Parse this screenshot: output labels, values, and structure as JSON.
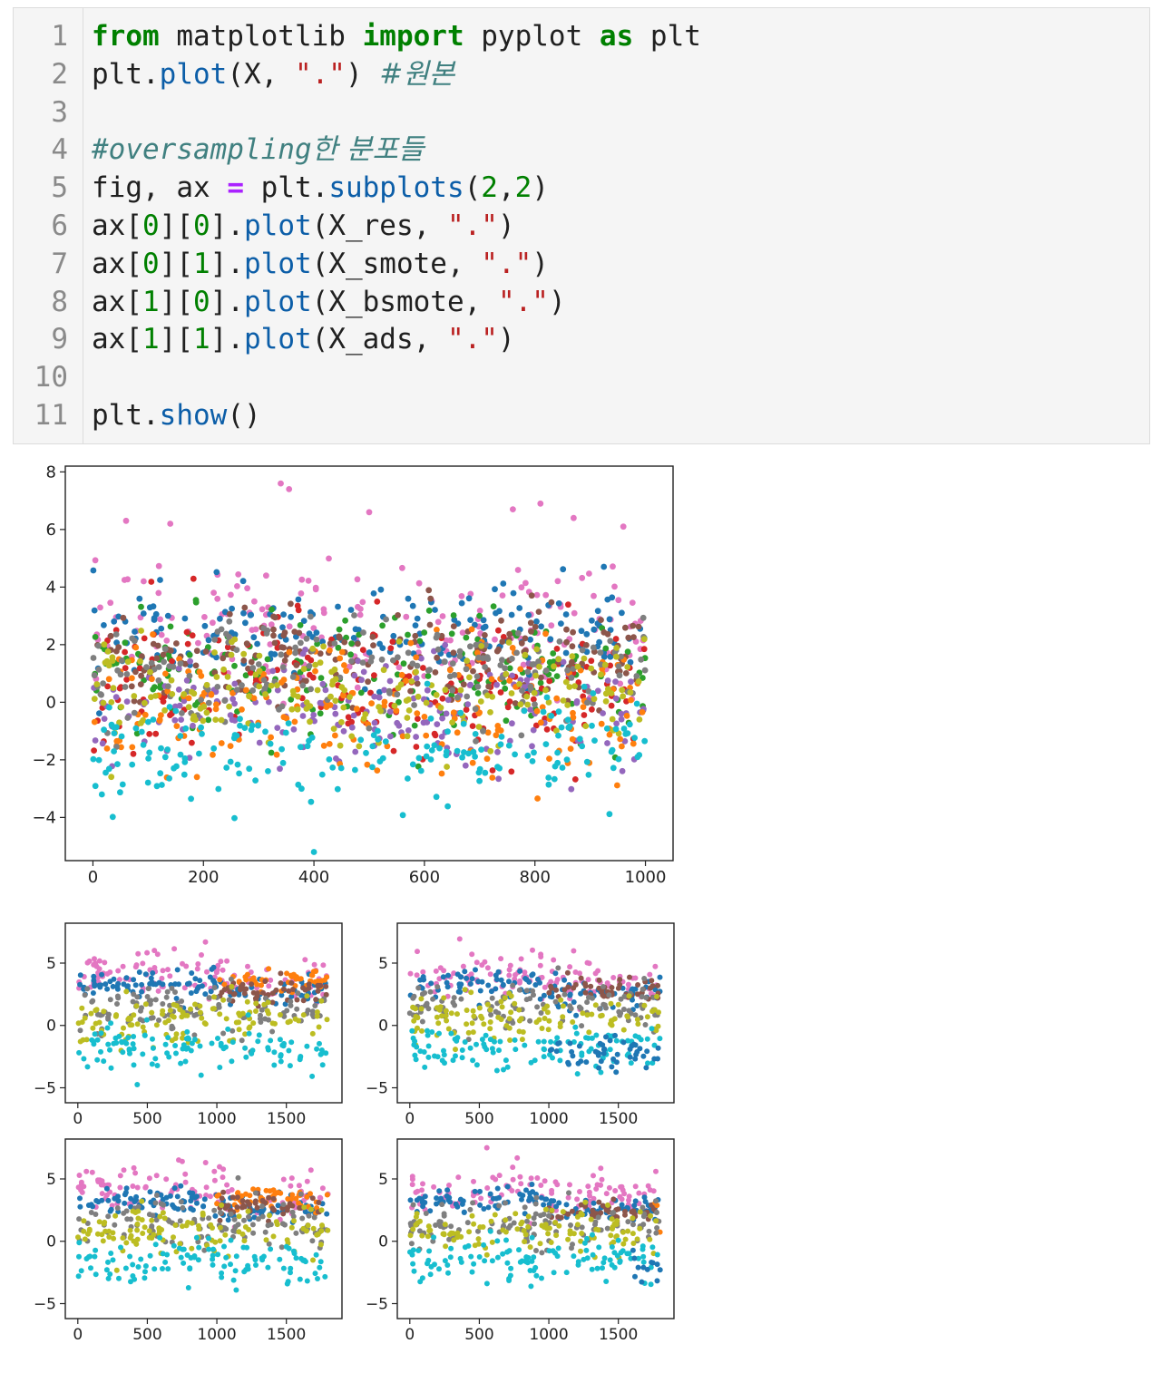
{
  "code_cell": {
    "lines": [
      {
        "n": "1",
        "tokens": [
          {
            "t": "from",
            "c": "kw"
          },
          {
            "t": " matplotlib ",
            "c": ""
          },
          {
            "t": "import",
            "c": "kw"
          },
          {
            "t": " pyplot ",
            "c": ""
          },
          {
            "t": "as",
            "c": "kw"
          },
          {
            "t": " plt",
            "c": ""
          }
        ]
      },
      {
        "n": "2",
        "tokens": [
          {
            "t": "plt.",
            "c": ""
          },
          {
            "t": "plot",
            "c": "fn"
          },
          {
            "t": "(X, ",
            "c": ""
          },
          {
            "t": "\".\"",
            "c": "str"
          },
          {
            "t": ") ",
            "c": ""
          },
          {
            "t": "#원본",
            "c": "cmk"
          }
        ]
      },
      {
        "n": "3",
        "tokens": []
      },
      {
        "n": "4",
        "tokens": [
          {
            "t": "#oversampling",
            "c": "cm"
          },
          {
            "t": "한 분포들",
            "c": "cmk"
          }
        ]
      },
      {
        "n": "5",
        "tokens": [
          {
            "t": "fig, ax ",
            "c": ""
          },
          {
            "t": "=",
            "c": "op"
          },
          {
            "t": " plt.",
            "c": ""
          },
          {
            "t": "subplots",
            "c": "fn"
          },
          {
            "t": "(",
            "c": ""
          },
          {
            "t": "2",
            "c": "num"
          },
          {
            "t": ",",
            "c": ""
          },
          {
            "t": "2",
            "c": "num"
          },
          {
            "t": ")",
            "c": ""
          }
        ]
      },
      {
        "n": "6",
        "tokens": [
          {
            "t": "ax[",
            "c": ""
          },
          {
            "t": "0",
            "c": "num"
          },
          {
            "t": "][",
            "c": ""
          },
          {
            "t": "0",
            "c": "num"
          },
          {
            "t": "].",
            "c": ""
          },
          {
            "t": "plot",
            "c": "fn"
          },
          {
            "t": "(X_res, ",
            "c": ""
          },
          {
            "t": "\".\"",
            "c": "str"
          },
          {
            "t": ")",
            "c": ""
          }
        ]
      },
      {
        "n": "7",
        "tokens": [
          {
            "t": "ax[",
            "c": ""
          },
          {
            "t": "0",
            "c": "num"
          },
          {
            "t": "][",
            "c": ""
          },
          {
            "t": "1",
            "c": "num"
          },
          {
            "t": "].",
            "c": ""
          },
          {
            "t": "plot",
            "c": "fn"
          },
          {
            "t": "(X_smote, ",
            "c": ""
          },
          {
            "t": "\".\"",
            "c": "str"
          },
          {
            "t": ")",
            "c": ""
          }
        ]
      },
      {
        "n": "8",
        "tokens": [
          {
            "t": "ax[",
            "c": ""
          },
          {
            "t": "1",
            "c": "num"
          },
          {
            "t": "][",
            "c": ""
          },
          {
            "t": "0",
            "c": "num"
          },
          {
            "t": "].",
            "c": ""
          },
          {
            "t": "plot",
            "c": "fn"
          },
          {
            "t": "(X_bsmote, ",
            "c": ""
          },
          {
            "t": "\".\"",
            "c": "str"
          },
          {
            "t": ")",
            "c": ""
          }
        ]
      },
      {
        "n": "9",
        "tokens": [
          {
            "t": "ax[",
            "c": ""
          },
          {
            "t": "1",
            "c": "num"
          },
          {
            "t": "][",
            "c": ""
          },
          {
            "t": "1",
            "c": "num"
          },
          {
            "t": "].",
            "c": ""
          },
          {
            "t": "plot",
            "c": "fn"
          },
          {
            "t": "(X_ads, ",
            "c": ""
          },
          {
            "t": "\".\"",
            "c": "str"
          },
          {
            "t": ")",
            "c": ""
          }
        ]
      },
      {
        "n": "10",
        "tokens": []
      },
      {
        "n": "11",
        "tokens": [
          {
            "t": "plt.",
            "c": ""
          },
          {
            "t": "show",
            "c": "fn"
          },
          {
            "t": "()",
            "c": ""
          }
        ]
      }
    ]
  },
  "chart_data": [
    {
      "type": "scatter",
      "title": "",
      "xlabel": "",
      "ylabel": "",
      "xlim": [
        -50,
        1050
      ],
      "ylim": [
        -5.5,
        8.2
      ],
      "xticks": [
        "0",
        "200",
        "400",
        "600",
        "800",
        "1000"
      ],
      "yticks": [
        "−4",
        "−2",
        "0",
        "2",
        "4",
        "6",
        "8"
      ],
      "x_range": [
        0,
        1000
      ],
      "series": [
        {
          "color": "#e377c2",
          "mean": 2.6,
          "std": 1.1,
          "outliers": [
            [
              340,
              7.6
            ],
            [
              355,
              7.4
            ],
            [
              810,
              6.9
            ],
            [
              60,
              6.3
            ],
            [
              140,
              6.2
            ],
            [
              500,
              6.6
            ],
            [
              760,
              6.7
            ],
            [
              870,
              6.4
            ],
            [
              960,
              6.1
            ]
          ]
        },
        {
          "color": "#1f77b4",
          "mean": 2.4,
          "std": 0.8
        },
        {
          "color": "#2ca02c",
          "mean": 0.9,
          "std": 1.1
        },
        {
          "color": "#d62728",
          "mean": 0.5,
          "std": 1.2
        },
        {
          "color": "#8c564b",
          "mean": 1.6,
          "std": 0.9
        },
        {
          "color": "#9467bd",
          "mean": -0.4,
          "std": 1.0
        },
        {
          "color": "#ff7f0e",
          "mean": -0.2,
          "std": 1.2
        },
        {
          "color": "#7f7f7f",
          "mean": 1.0,
          "std": 0.9
        },
        {
          "color": "#bcbd22",
          "mean": 0.4,
          "std": 0.9
        },
        {
          "color": "#17becf",
          "mean": -1.8,
          "std": 0.9,
          "outliers": [
            [
              400,
              -5.2
            ]
          ]
        }
      ]
    },
    {
      "type": "scatter",
      "title": "",
      "xlabel": "",
      "ylabel": "",
      "xlim": [
        -90,
        1900
      ],
      "ylim": [
        -6.2,
        8.2
      ],
      "xticks": [
        "0",
        "500",
        "1000",
        "1500"
      ],
      "yticks": [
        "−5",
        "0",
        "5"
      ],
      "x_range": [
        0,
        1800
      ],
      "resample_start": 1000,
      "variant": "res",
      "series": [
        {
          "color": "#e377c2",
          "mean": 4.2,
          "std": 1.0
        },
        {
          "color": "#1f77b4",
          "mean": 3.2,
          "std": 0.6
        },
        {
          "color": "#ff7f0e",
          "mean": 3.5,
          "std": 0.4,
          "from": 1000
        },
        {
          "color": "#8c564b",
          "mean": 2.6,
          "std": 0.5,
          "from": 1000
        },
        {
          "color": "#7f7f7f",
          "mean": 1.2,
          "std": 1.0
        },
        {
          "color": "#bcbd22",
          "mean": 0.6,
          "std": 1.0
        },
        {
          "color": "#17becf",
          "mean": -1.7,
          "std": 0.9
        }
      ]
    },
    {
      "type": "scatter",
      "title": "",
      "xlabel": "",
      "ylabel": "",
      "xlim": [
        -90,
        1900
      ],
      "ylim": [
        -6.2,
        8.2
      ],
      "xticks": [
        "0",
        "500",
        "1000",
        "1500"
      ],
      "yticks": [
        "−5",
        "0",
        "5"
      ],
      "x_range": [
        0,
        1800
      ],
      "resample_start": 1000,
      "variant": "smote",
      "series": [
        {
          "color": "#e377c2",
          "mean": 4.2,
          "std": 1.0
        },
        {
          "color": "#1f77b4",
          "mean": 3.2,
          "std": 0.6
        },
        {
          "color": "#8c564b",
          "mean": 3.0,
          "std": 0.5,
          "from": 1000
        },
        {
          "color": "#7f7f7f",
          "mean": 1.4,
          "std": 0.9
        },
        {
          "color": "#bcbd22",
          "mean": 0.6,
          "std": 1.0
        },
        {
          "color": "#17becf",
          "mean": -1.8,
          "std": 0.9
        },
        {
          "color": "#1f77b4",
          "mean": -2.3,
          "std": 0.6,
          "from": 1000
        }
      ]
    },
    {
      "type": "scatter",
      "title": "",
      "xlabel": "",
      "ylabel": "",
      "xlim": [
        -90,
        1900
      ],
      "ylim": [
        -6.2,
        8.2
      ],
      "xticks": [
        "0",
        "500",
        "1000",
        "1500"
      ],
      "yticks": [
        "−5",
        "0",
        "5"
      ],
      "x_range": [
        0,
        1800
      ],
      "resample_start": 1000,
      "variant": "bsmote",
      "series": [
        {
          "color": "#e377c2",
          "mean": 4.2,
          "std": 1.0
        },
        {
          "color": "#1f77b4",
          "mean": 3.2,
          "std": 0.6
        },
        {
          "color": "#ff7f0e",
          "mean": 3.5,
          "std": 0.4,
          "from": 1000
        },
        {
          "color": "#8c564b",
          "mean": 2.8,
          "std": 0.5,
          "from": 1000
        },
        {
          "color": "#7f7f7f",
          "mean": 1.3,
          "std": 1.0
        },
        {
          "color": "#bcbd22",
          "mean": 0.8,
          "std": 1.0
        },
        {
          "color": "#17becf",
          "mean": -1.6,
          "std": 0.9
        }
      ]
    },
    {
      "type": "scatter",
      "title": "",
      "xlabel": "",
      "ylabel": "",
      "xlim": [
        -90,
        1900
      ],
      "ylim": [
        -6.2,
        8.2
      ],
      "xticks": [
        "0",
        "500",
        "1000",
        "1500"
      ],
      "yticks": [
        "−5",
        "0",
        "5"
      ],
      "x_range": [
        0,
        1800
      ],
      "resample_start": 1000,
      "variant": "ads",
      "series": [
        {
          "color": "#e377c2",
          "mean": 4.2,
          "std": 1.0
        },
        {
          "color": "#1f77b4",
          "mean": 3.2,
          "std": 0.6
        },
        {
          "color": "#8c564b",
          "mean": 2.4,
          "std": 0.4,
          "from": 1000
        },
        {
          "color": "#ff7f0e",
          "mean": 2.8,
          "std": 0.9,
          "from": 1750
        },
        {
          "color": "#7f7f7f",
          "mean": 1.2,
          "std": 0.9
        },
        {
          "color": "#bcbd22",
          "mean": 0.8,
          "std": 0.9
        },
        {
          "color": "#17becf",
          "mean": -1.5,
          "std": 0.9
        },
        {
          "color": "#1f77b4",
          "mean": -1.9,
          "std": 0.5,
          "from": 1600
        }
      ]
    }
  ]
}
